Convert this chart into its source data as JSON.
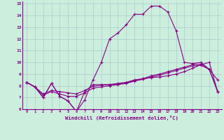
{
  "xlabel": "Windchill (Refroidissement éolien,°C)",
  "bg_color": "#cceedd",
  "grid_color": "#aacccc",
  "line_color": "#880088",
  "xlim": [
    -0.5,
    23.5
  ],
  "ylim": [
    6,
    15.2
  ],
  "yticks": [
    6,
    7,
    8,
    9,
    10,
    11,
    12,
    13,
    14,
    15
  ],
  "xticks": [
    0,
    1,
    2,
    3,
    4,
    5,
    6,
    7,
    8,
    9,
    10,
    11,
    12,
    13,
    14,
    15,
    16,
    17,
    18,
    19,
    20,
    21,
    22,
    23
  ],
  "series": [
    [
      8.3,
      7.9,
      7.0,
      8.2,
      7.1,
      6.7,
      5.8,
      6.8,
      8.5,
      10.0,
      12.0,
      12.5,
      13.2,
      14.1,
      14.1,
      14.8,
      14.8,
      14.3,
      12.7,
      10.0,
      9.9,
      10.0,
      9.4,
      8.5
    ],
    [
      8.3,
      7.9,
      7.0,
      8.2,
      7.1,
      6.7,
      5.8,
      7.5,
      8.1,
      8.1,
      8.1,
      8.2,
      8.3,
      8.5,
      8.6,
      8.7,
      8.75,
      8.85,
      9.0,
      9.2,
      9.5,
      9.8,
      10.0,
      7.5
    ],
    [
      8.3,
      7.9,
      7.2,
      7.5,
      7.3,
      7.1,
      7.1,
      7.4,
      7.8,
      7.9,
      8.0,
      8.1,
      8.2,
      8.4,
      8.55,
      8.75,
      8.9,
      9.1,
      9.3,
      9.5,
      9.7,
      9.75,
      9.4,
      7.5
    ],
    [
      8.3,
      7.9,
      7.3,
      7.6,
      7.5,
      7.4,
      7.3,
      7.6,
      7.95,
      8.05,
      8.1,
      8.15,
      8.25,
      8.45,
      8.6,
      8.85,
      9.0,
      9.2,
      9.4,
      9.6,
      9.8,
      9.85,
      9.4,
      7.5
    ]
  ]
}
